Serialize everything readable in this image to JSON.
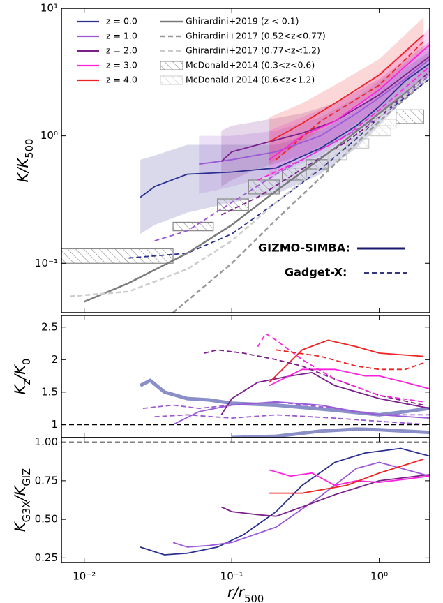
{
  "chart_data": [
    {
      "type": "line",
      "ylog": true,
      "ylabel": [
        {
          "text": "K/K"
        },
        {
          "text": "500",
          "sub": true
        }
      ],
      "ylim": [
        0.041,
        10
      ],
      "yticks": [
        {
          "value": 10,
          "label": "10¹"
        },
        {
          "value": 1,
          "label": "10⁰"
        },
        {
          "value": 0.1,
          "label": "10⁻¹"
        }
      ],
      "series": [
        {
          "name": "z = 0.0",
          "color": "#2b2f8f",
          "x": [
            0.024,
            0.03,
            0.05,
            0.1,
            0.2,
            0.4,
            0.7,
            1,
            1.5,
            2.2
          ],
          "values": [
            0.33,
            0.4,
            0.5,
            0.52,
            0.56,
            0.8,
            1.2,
            1.7,
            2.7,
            3.7
          ],
          "lower": [
            0.17,
            0.2,
            0.25,
            0.3,
            0.35,
            0.5,
            0.8,
            1.2,
            2.0,
            2.8
          ],
          "upper": [
            0.65,
            0.7,
            0.85,
            0.85,
            0.85,
            1.1,
            1.6,
            2.3,
            3.4,
            4.6
          ]
        },
        {
          "name": "z = 1.0",
          "color": "#9b59d8",
          "x": [
            0.06,
            0.1,
            0.2,
            0.4,
            0.7,
            1,
            1.5,
            2.2
          ],
          "values": [
            0.6,
            0.65,
            0.75,
            1.0,
            1.5,
            2.0,
            2.8,
            4.0
          ],
          "lower": [
            0.35,
            0.4,
            0.5,
            0.7,
            1.1,
            1.5,
            2.1,
            3.0
          ],
          "upper": [
            1.0,
            1.0,
            1.1,
            1.4,
            2.0,
            2.7,
            3.7,
            5.2
          ]
        },
        {
          "name": "z = 2.0",
          "color": "#7b1f8a",
          "x": [
            0.085,
            0.1,
            0.15,
            0.3,
            0.5,
            1,
            2.2
          ],
          "values": [
            0.63,
            0.75,
            0.85,
            1.05,
            1.3,
            2.1,
            4.2
          ],
          "lower": [
            0.4,
            0.45,
            0.55,
            0.7,
            0.9,
            1.5,
            3.0
          ],
          "upper": [
            1.1,
            1.2,
            1.3,
            1.5,
            1.8,
            2.8,
            5.5
          ]
        },
        {
          "name": "z = 3.0",
          "color": "#ff22dd",
          "x": [
            0.18,
            0.3,
            0.5,
            1,
            2.2
          ],
          "values": [
            0.65,
            1.0,
            1.3,
            2.3,
            5.2
          ],
          "lower": [
            0.45,
            0.7,
            0.95,
            1.7,
            4.0
          ],
          "upper": [
            1.1,
            1.4,
            1.8,
            3.1,
            7.0
          ]
        },
        {
          "name": "z = 4.0",
          "color": "#ee2222",
          "x": [
            0.18,
            0.3,
            0.5,
            1,
            2
          ],
          "values": [
            0.9,
            1.25,
            1.8,
            3.0,
            6.2
          ],
          "lower": [
            0.6,
            0.9,
            1.3,
            2.3,
            4.8
          ],
          "upper": [
            1.4,
            1.8,
            2.5,
            4.0,
            8.5
          ]
        },
        {
          "color": "#2b2f8f",
          "dash": "dashed",
          "x": [
            0.02,
            0.05,
            0.1,
            0.2,
            0.4,
            0.7,
            1,
            2.2
          ],
          "values": [
            0.11,
            0.12,
            0.17,
            0.3,
            0.55,
            0.95,
            1.4,
            2.8
          ]
        },
        {
          "color": "#9b59d8",
          "dash": "dashed",
          "x": [
            0.03,
            0.05,
            0.1,
            0.2,
            0.5,
            1,
            2.2
          ],
          "values": [
            0.15,
            0.18,
            0.3,
            0.5,
            0.9,
            1.4,
            3.0
          ]
        },
        {
          "color": "#7b1f8a",
          "dash": "dashed",
          "x": [
            0.085,
            0.15,
            0.3,
            0.6,
            1,
            2.2
          ],
          "values": [
            0.24,
            0.33,
            0.55,
            0.9,
            1.4,
            3.2
          ]
        },
        {
          "color": "#ff22dd",
          "dash": "dashed",
          "x": [
            0.15,
            0.3,
            0.6,
            1,
            2.2
          ],
          "values": [
            0.45,
            0.65,
            1.0,
            1.6,
            3.5
          ]
        },
        {
          "color": "#ee2222",
          "dash": "dashed",
          "x": [
            0.2,
            0.4,
            1,
            2
          ],
          "values": [
            0.65,
            1.3,
            2.5,
            5.5
          ]
        },
        {
          "name": "Ghirardini+2019 (z < 0.1)",
          "color": "#7a7a7a",
          "linewidth": 2.5,
          "x": [
            0.01,
            0.02,
            0.05,
            0.1,
            0.2,
            0.5,
            1,
            2
          ],
          "values": [
            0.05,
            0.07,
            0.12,
            0.2,
            0.37,
            0.8,
            1.5,
            2.8
          ]
        },
        {
          "name": "Ghirardini+2017 (0.52<z<0.77)",
          "color": "#999999",
          "dash": "dashed",
          "linewidth": 2.5,
          "x": [
            0.04,
            0.1,
            0.2,
            0.5,
            1,
            2
          ],
          "values": [
            0.041,
            0.1,
            0.22,
            0.6,
            1.3,
            2.6
          ]
        },
        {
          "name": "Ghirardini+2017 (0.77<z<1.2)",
          "color": "#cccccc",
          "dash": "dashed",
          "linewidth": 2.5,
          "x": [
            0.008,
            0.02,
            0.05,
            0.1,
            0.2,
            0.5,
            1,
            2
          ],
          "values": [
            0.055,
            0.06,
            0.09,
            0.15,
            0.3,
            0.7,
            1.4,
            2.8
          ]
        }
      ],
      "hatch_series": [
        {
          "name": "McDonald+2014 (0.3<z<0.6)",
          "color": "#888888",
          "boxes": [
            {
              "x": [
                0.007,
                0.04
              ],
              "y": [
                0.1,
                0.13
              ]
            },
            {
              "x": [
                0.04,
                0.075
              ],
              "y": [
                0.18,
                0.21
              ]
            },
            {
              "x": [
                0.08,
                0.13
              ],
              "y": [
                0.26,
                0.32
              ]
            },
            {
              "x": [
                0.13,
                0.21
              ],
              "y": [
                0.35,
                0.45
              ]
            },
            {
              "x": [
                0.22,
                0.32
              ],
              "y": [
                0.45,
                0.56
              ]
            },
            {
              "x": [
                0.32,
                0.45
              ],
              "y": [
                0.55,
                0.65
              ]
            },
            {
              "x": [
                1.3,
                2.0
              ],
              "y": [
                1.25,
                1.6
              ]
            }
          ]
        },
        {
          "name": "McDonald+2014 (0.6<z<1.2)",
          "color": "#cccccc",
          "boxes": [
            {
              "x": [
                0.45,
                0.6
              ],
              "y": [
                0.65,
                0.78
              ]
            },
            {
              "x": [
                0.6,
                0.85
              ],
              "y": [
                0.8,
                0.95
              ]
            },
            {
              "x": [
                0.85,
                1.2
              ],
              "y": [
                1.0,
                1.2
              ]
            },
            {
              "x": [
                0.9,
                1.3
              ],
              "y": [
                1.15,
                1.35
              ]
            }
          ]
        }
      ],
      "annotations": [
        {
          "text": "GIZMO-SIMBA:",
          "color": "#1a1a6e"
        },
        {
          "text": "Gadget-X:",
          "color": "#1a1a6e",
          "dash": "dashed"
        }
      ]
    },
    {
      "type": "line",
      "ylabel": [
        {
          "text": "K"
        },
        {
          "text": "z",
          "sub": true
        },
        {
          "text": "/K"
        },
        {
          "text": "0",
          "sub": true
        }
      ],
      "ylim": [
        0.8,
        2.68
      ],
      "yticks": [
        2.5,
        2,
        1.5,
        1
      ],
      "hline": 1,
      "series": [
        {
          "color": "#8a8fc8",
          "linewidth": 5,
          "x": [
            0.024,
            0.028,
            0.035,
            0.05,
            0.07,
            0.1,
            0.2,
            0.5,
            1,
            1.5,
            2.2
          ],
          "values": [
            1.6,
            1.68,
            1.5,
            1.4,
            1.38,
            1.33,
            1.3,
            1.22,
            1.15,
            1.2,
            1.25
          ]
        },
        {
          "color": "#8a8fc8",
          "linewidth": 5,
          "x": [
            0.1,
            0.2,
            0.4,
            0.7,
            1,
            2.2
          ],
          "values": [
            0.8,
            0.82,
            0.9,
            0.93,
            0.92,
            0.88
          ]
        },
        {
          "color": "#9b59d8",
          "x": [
            0.04,
            0.06,
            0.1,
            0.2,
            0.4,
            0.7,
            1,
            2.2
          ],
          "values": [
            1,
            1.2,
            1.3,
            1.35,
            1.3,
            1.2,
            1.15,
            1.1
          ]
        },
        {
          "color": "#7b1f8a",
          "x": [
            0.085,
            0.1,
            0.15,
            0.25,
            0.35,
            0.5,
            1,
            2.2
          ],
          "values": [
            1.15,
            1.4,
            1.65,
            1.75,
            1.8,
            1.6,
            1.4,
            1.25
          ]
        },
        {
          "color": "#ff22dd",
          "x": [
            0.18,
            0.3,
            0.5,
            0.8,
            1,
            1.5,
            2.2
          ],
          "values": [
            1.6,
            1.85,
            1.85,
            1.75,
            1.75,
            1.65,
            1.55
          ]
        },
        {
          "color": "#ee2222",
          "x": [
            0.18,
            0.3,
            0.45,
            0.7,
            1,
            2
          ],
          "values": [
            1.65,
            2.15,
            2.3,
            2.2,
            2.1,
            2.05
          ]
        },
        {
          "color": "#9b59d8",
          "dash": "dashed",
          "x": [
            0.03,
            0.05,
            0.1,
            0.2,
            0.5,
            1,
            2.2
          ],
          "values": [
            1.12,
            1.15,
            1.1,
            1.15,
            1.1,
            1.05,
            1.0
          ]
        },
        {
          "color": "#9b59d8",
          "dash": "dashed",
          "x": [
            0.025,
            0.04,
            0.06,
            0.1,
            0.2,
            0.5,
            1,
            2.2
          ],
          "values": [
            1.25,
            1.3,
            1.25,
            1.3,
            1.35,
            1.25,
            1.15,
            1.15
          ]
        },
        {
          "color": "#7b1f8a",
          "dash": "dashed",
          "x": [
            0.065,
            0.08,
            0.12,
            0.2,
            0.3,
            0.5,
            1,
            2
          ],
          "values": [
            2.1,
            2.15,
            2.1,
            2.0,
            1.9,
            1.7,
            1.45,
            1.3
          ]
        },
        {
          "color": "#ff22dd",
          "dash": "dashed",
          "x": [
            0.15,
            0.17,
            0.2,
            0.3,
            0.5,
            1,
            2
          ],
          "values": [
            2.2,
            2.4,
            2.3,
            2.0,
            1.7,
            1.45,
            1.35
          ]
        },
        {
          "color": "#ee2222",
          "dash": "dashed",
          "x": [
            0.2,
            0.4,
            0.7,
            1,
            1.5,
            2
          ],
          "values": [
            2.15,
            2.05,
            1.9,
            1.85,
            1.85,
            1.95
          ]
        }
      ]
    },
    {
      "type": "line",
      "ylabel": [
        {
          "text": "K"
        },
        {
          "text": "G3X",
          "sub": true
        },
        {
          "text": "/K"
        },
        {
          "text": "GIZ",
          "sub": true
        }
      ],
      "xlabel": [
        {
          "text": "r/r"
        },
        {
          "text": "500",
          "sub": true
        }
      ],
      "xlog": true,
      "xlim": [
        0.007,
        2.2
      ],
      "xticks": [
        {
          "value": 0.01,
          "label": "10⁻²"
        },
        {
          "value": 0.1,
          "label": "10⁻¹"
        },
        {
          "value": 1,
          "label": "10⁰"
        }
      ],
      "ylim": [
        0.22,
        1.03
      ],
      "yticks": [
        {
          "value": 1,
          "label": "1.00"
        },
        0.75,
        {
          "value": 0.5,
          "label": "0.50"
        },
        0.25
      ],
      "hline": 1,
      "series": [
        {
          "color": "#2b2f8f",
          "x": [
            0.024,
            0.03,
            0.035,
            0.05,
            0.08,
            0.12,
            0.2,
            0.3,
            0.5,
            0.8,
            1.4,
            2.2
          ],
          "values": [
            0.32,
            0.29,
            0.27,
            0.28,
            0.32,
            0.4,
            0.55,
            0.72,
            0.87,
            0.93,
            0.96,
            0.91
          ]
        },
        {
          "color": "#9b59d8",
          "x": [
            0.04,
            0.05,
            0.07,
            0.1,
            0.2,
            0.4,
            0.7,
            1,
            2.2
          ],
          "values": [
            0.35,
            0.32,
            0.33,
            0.35,
            0.45,
            0.65,
            0.83,
            0.87,
            0.78
          ]
        },
        {
          "color": "#7b1f8a",
          "x": [
            0.085,
            0.1,
            0.15,
            0.2,
            0.3,
            0.5,
            1,
            2.2
          ],
          "values": [
            0.58,
            0.55,
            0.53,
            0.52,
            0.58,
            0.66,
            0.75,
            0.79
          ]
        },
        {
          "color": "#ff22dd",
          "x": [
            0.18,
            0.25,
            0.35,
            0.5,
            0.7,
            1,
            1.5,
            2.2
          ],
          "values": [
            0.82,
            0.78,
            0.8,
            0.72,
            0.75,
            0.74,
            0.76,
            0.78
          ]
        },
        {
          "color": "#ee2222",
          "x": [
            0.18,
            0.3,
            0.6,
            1,
            2
          ],
          "values": [
            0.67,
            0.67,
            0.72,
            0.8,
            0.89
          ]
        }
      ]
    }
  ]
}
